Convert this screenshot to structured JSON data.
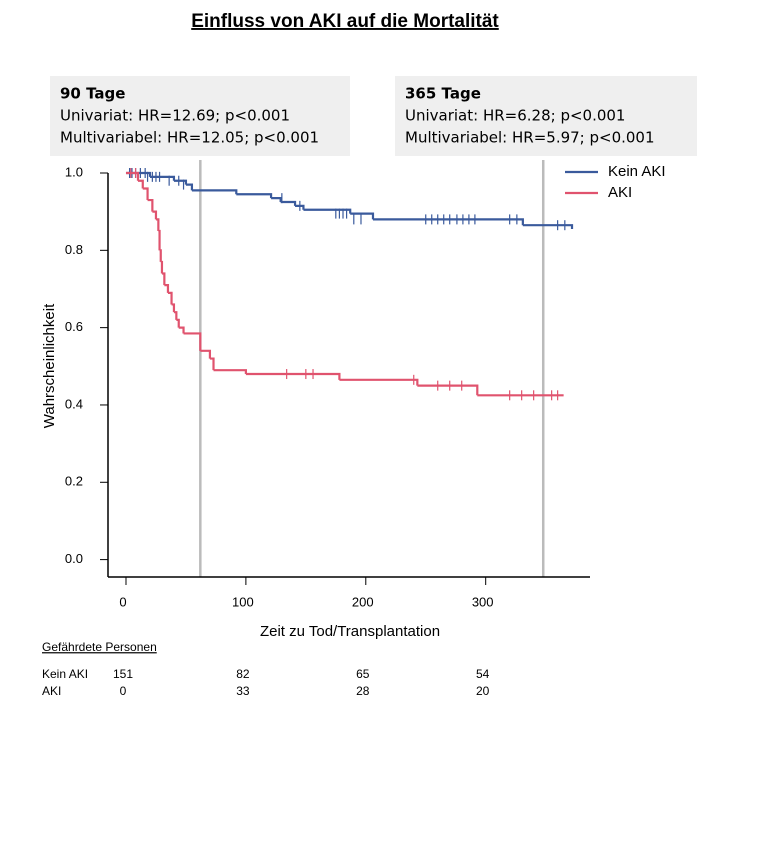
{
  "chart_data": {
    "type": "step",
    "title": "Einfluss von AKI auf die Mortalität",
    "y_label": "Wahrscheinlichkeit",
    "x_label": "Zeit zu Tod/Transplantation",
    "xlim": [
      -15,
      387
    ],
    "ylim": [
      -0.045,
      1.0
    ],
    "xticks": [
      0,
      100,
      200,
      300
    ],
    "yticks": [
      {
        "value": 0,
        "label": "0.0"
      },
      0.2,
      0.4,
      0.6,
      0.8,
      {
        "value": 1,
        "label": "1.0"
      }
    ],
    "legend": "top-right",
    "reference_lines": [
      62,
      348
    ],
    "annotations": [
      {
        "title": "90 Tage",
        "lines": [
          "Univariat: HR=12.69; p<0.001",
          "Multivariabel: HR=12.05; p<0.001"
        ]
      },
      {
        "title": "365 Tage",
        "lines": [
          "Univariat: HR=6.28; p<0.001",
          "Multivariabel: HR=5.97; p<0.001"
        ]
      }
    ],
    "series": [
      {
        "name": "Kein AKI",
        "color": "#3a5a9c",
        "x": [
          0,
          20,
          40,
          50,
          55,
          92,
          121,
          129,
          141,
          148,
          187,
          206,
          331,
          372
        ],
        "values": [
          1.0,
          0.99,
          0.98,
          0.97,
          0.955,
          0.945,
          0.935,
          0.925,
          0.915,
          0.905,
          0.895,
          0.88,
          0.865,
          0.855
        ],
        "censored_x": [
          3,
          5,
          8,
          12,
          16,
          18,
          22,
          25,
          28,
          36,
          44,
          48,
          130,
          145,
          175,
          178,
          181,
          184,
          190,
          196,
          250,
          255,
          260,
          265,
          270,
          276,
          281,
          286,
          291,
          320,
          326,
          360,
          366
        ],
        "censored_step": [
          0,
          0,
          0,
          0,
          0,
          1,
          1,
          1,
          1,
          2,
          2,
          3,
          6,
          8,
          10,
          10,
          10,
          10,
          11,
          11,
          11,
          11,
          11,
          11,
          11,
          11,
          11,
          11,
          11,
          11,
          11,
          12,
          12
        ]
      },
      {
        "name": "AKI",
        "color": "#e0536e",
        "x": [
          0,
          10,
          14,
          18,
          22,
          25,
          27,
          28,
          29,
          30,
          32,
          35,
          38,
          40,
          42,
          44,
          48,
          62,
          70,
          73,
          100,
          178,
          243,
          293,
          365
        ],
        "values": [
          1.0,
          0.98,
          0.96,
          0.93,
          0.9,
          0.88,
          0.85,
          0.8,
          0.77,
          0.74,
          0.71,
          0.69,
          0.66,
          0.64,
          0.62,
          0.6,
          0.585,
          0.54,
          0.52,
          0.49,
          0.48,
          0.465,
          0.45,
          0.425,
          0.425
        ],
        "censored_x": [
          4,
          8,
          134,
          150,
          156,
          240,
          260,
          270,
          280,
          320,
          330,
          340,
          355,
          360
        ],
        "censored_step": [
          0,
          0,
          20,
          20,
          20,
          21,
          22,
          22,
          22,
          23,
          23,
          23,
          23,
          23
        ]
      }
    ],
    "risk_table": {
      "title": "Gefährdete  Personen",
      "rows": [
        {
          "label": "Kein AKI",
          "counts": [
            151,
            82,
            65,
            54
          ]
        },
        {
          "label": "AKI",
          "counts": [
            0,
            33,
            28,
            20
          ]
        }
      ]
    }
  }
}
